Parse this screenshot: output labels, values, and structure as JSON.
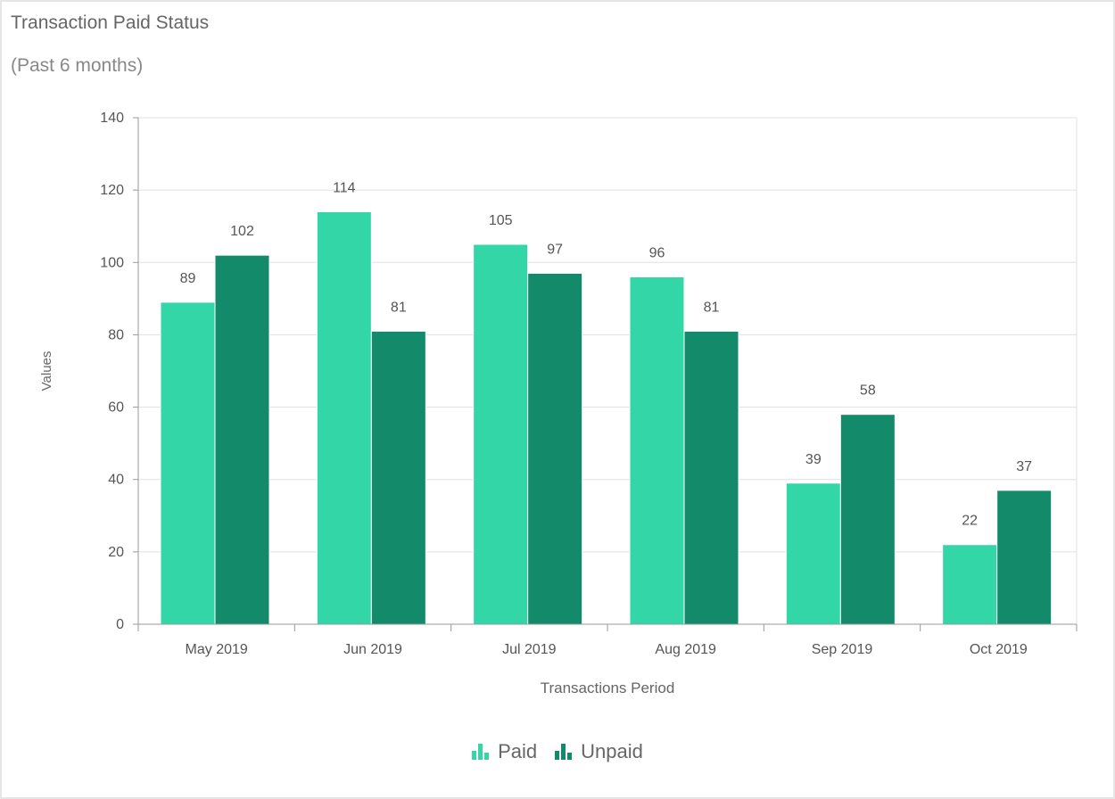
{
  "chart_data": {
    "type": "bar",
    "title": "Transaction Paid Status",
    "subtitle": "(Past 6 months)",
    "xlabel": "Transactions Period",
    "ylabel": "Values",
    "ylim": [
      0,
      140
    ],
    "yticks": [
      "0",
      "20",
      "40",
      "60",
      "80",
      "100",
      "120",
      "140"
    ],
    "categories": [
      "May 2019",
      "Jun 2019",
      "Jul 2019",
      "Aug 2019",
      "Sep 2019",
      "Oct 2019"
    ],
    "series": [
      {
        "name": "Paid",
        "color": "#33d6a6",
        "values": [
          89,
          114,
          105,
          96,
          39,
          22
        ]
      },
      {
        "name": "Unpaid",
        "color": "#138a69",
        "values": [
          102,
          81,
          97,
          81,
          58,
          37
        ]
      }
    ],
    "grid": true,
    "legend": "bottom-center"
  }
}
